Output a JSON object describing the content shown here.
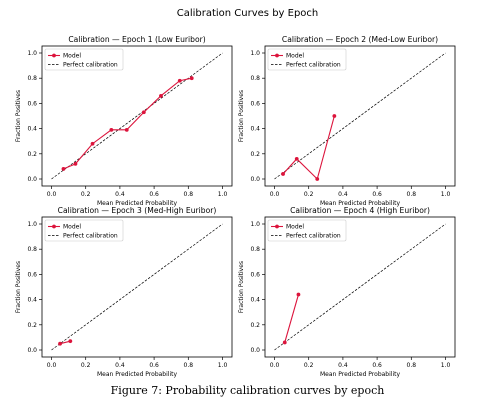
{
  "figure": {
    "suptitle": "Calibration Curves by Epoch",
    "caption": "Figure 7: Probability calibration curves by epoch"
  },
  "colors": {
    "model": "#dc143c",
    "perfect": "#000000",
    "axis": "#000000"
  },
  "chart_data": [
    {
      "type": "line",
      "title": "Calibration — Epoch 1 (Low Euribor)",
      "xlabel": "Mean Predicted Probability",
      "ylabel": "Fraction Positives",
      "xlim": [
        0,
        1
      ],
      "ylim": [
        0,
        1
      ],
      "xticks": [
        0.0,
        0.2,
        0.4,
        0.6,
        0.8,
        1.0
      ],
      "yticks": [
        0.0,
        0.2,
        0.4,
        0.6,
        0.8,
        1.0
      ],
      "legend": "top-left",
      "series": [
        {
          "name": "Model",
          "style": "line-markers",
          "x": [
            0.07,
            0.14,
            0.24,
            0.35,
            0.44,
            0.54,
            0.64,
            0.75,
            0.82
          ],
          "y": [
            0.08,
            0.12,
            0.28,
            0.39,
            0.39,
            0.53,
            0.66,
            0.78,
            0.8
          ]
        },
        {
          "name": "Perfect calibration",
          "style": "dashed",
          "x": [
            0,
            1
          ],
          "y": [
            0,
            1
          ]
        }
      ]
    },
    {
      "type": "line",
      "title": "Calibration — Epoch 2 (Med-Low Euribor)",
      "xlabel": "Mean Predicted Probability",
      "ylabel": "Fraction Positives",
      "xlim": [
        0,
        1
      ],
      "ylim": [
        0,
        1
      ],
      "xticks": [
        0.0,
        0.2,
        0.4,
        0.6,
        0.8,
        1.0
      ],
      "yticks": [
        0.0,
        0.2,
        0.4,
        0.6,
        0.8,
        1.0
      ],
      "legend": "top-left",
      "series": [
        {
          "name": "Model",
          "style": "line-markers",
          "x": [
            0.05,
            0.13,
            0.25,
            0.35
          ],
          "y": [
            0.04,
            0.16,
            0.0,
            0.5
          ]
        },
        {
          "name": "Perfect calibration",
          "style": "dashed",
          "x": [
            0,
            1
          ],
          "y": [
            0,
            1
          ]
        }
      ]
    },
    {
      "type": "line",
      "title": "Calibration — Epoch 3 (Med-High Euribor)",
      "xlabel": "Mean Predicted Probability",
      "ylabel": "Fraction Positives",
      "xlim": [
        0,
        1
      ],
      "ylim": [
        0,
        1
      ],
      "xticks": [
        0.0,
        0.2,
        0.4,
        0.6,
        0.8,
        1.0
      ],
      "yticks": [
        0.0,
        0.2,
        0.4,
        0.6,
        0.8,
        1.0
      ],
      "legend": "top-left",
      "series": [
        {
          "name": "Model",
          "style": "line-markers",
          "x": [
            0.05,
            0.11
          ],
          "y": [
            0.05,
            0.07
          ]
        },
        {
          "name": "Perfect calibration",
          "style": "dashed",
          "x": [
            0,
            1
          ],
          "y": [
            0,
            1
          ]
        }
      ]
    },
    {
      "type": "line",
      "title": "Calibration — Epoch 4 (High Euribor)",
      "xlabel": "Mean Predicted Probability",
      "ylabel": "Fraction Positives",
      "xlim": [
        0,
        1
      ],
      "ylim": [
        0,
        1
      ],
      "xticks": [
        0.0,
        0.2,
        0.4,
        0.6,
        0.8,
        1.0
      ],
      "yticks": [
        0.0,
        0.2,
        0.4,
        0.6,
        0.8,
        1.0
      ],
      "legend": "top-left",
      "series": [
        {
          "name": "Model",
          "style": "line-markers",
          "x": [
            0.06,
            0.14
          ],
          "y": [
            0.06,
            0.44
          ]
        },
        {
          "name": "Perfect calibration",
          "style": "dashed",
          "x": [
            0,
            1
          ],
          "y": [
            0,
            1
          ]
        }
      ]
    }
  ]
}
